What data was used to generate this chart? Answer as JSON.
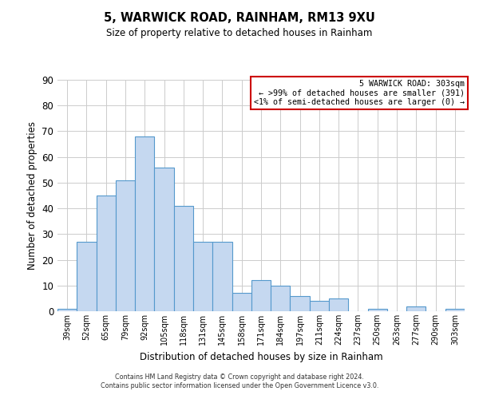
{
  "title": "5, WARWICK ROAD, RAINHAM, RM13 9XU",
  "subtitle": "Size of property relative to detached houses in Rainham",
  "xlabel": "Distribution of detached houses by size in Rainham",
  "ylabel": "Number of detached properties",
  "categories": [
    "39sqm",
    "52sqm",
    "65sqm",
    "79sqm",
    "92sqm",
    "105sqm",
    "118sqm",
    "131sqm",
    "145sqm",
    "158sqm",
    "171sqm",
    "184sqm",
    "197sqm",
    "211sqm",
    "224sqm",
    "237sqm",
    "250sqm",
    "263sqm",
    "277sqm",
    "290sqm",
    "303sqm"
  ],
  "values": [
    1,
    27,
    45,
    51,
    68,
    56,
    41,
    27,
    27,
    7,
    12,
    10,
    6,
    4,
    5,
    0,
    1,
    0,
    2,
    0,
    1
  ],
  "bar_color": "#c5d8f0",
  "bar_edge_color": "#5599cc",
  "ylim": [
    0,
    90
  ],
  "yticks": [
    0,
    10,
    20,
    30,
    40,
    50,
    60,
    70,
    80,
    90
  ],
  "annotation_box_title": "5 WARWICK ROAD: 303sqm",
  "annotation_line1": "← >99% of detached houses are smaller (391)",
  "annotation_line2": "<1% of semi-detached houses are larger (0) →",
  "annotation_box_color": "#ffffff",
  "annotation_box_edge_color": "#cc0000",
  "footer_line1": "Contains HM Land Registry data © Crown copyright and database right 2024.",
  "footer_line2": "Contains public sector information licensed under the Open Government Licence v3.0.",
  "background_color": "#ffffff",
  "grid_color": "#cccccc"
}
